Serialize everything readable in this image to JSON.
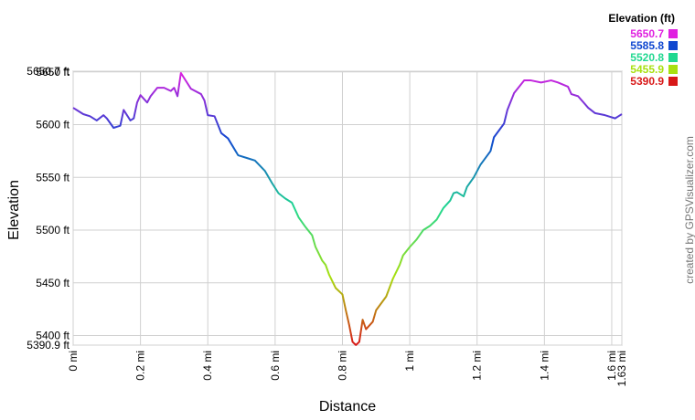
{
  "chart_data": {
    "type": "line",
    "xlabel": "Distance",
    "ylabel": "Elevation",
    "credit": "created by GPSVisualizer.com",
    "legend_title": "Elevation (ft)",
    "color_scale": [
      {
        "value": 5650.7,
        "color": "#e020e0"
      },
      {
        "value": 5585.8,
        "color": "#1048d0"
      },
      {
        "value": 5520.8,
        "color": "#20d890"
      },
      {
        "value": 5455.9,
        "color": "#a8e010"
      },
      {
        "value": 5390.9,
        "color": "#d81818"
      }
    ],
    "xlim": [
      0,
      1.63
    ],
    "xticks": [
      {
        "value": 0,
        "label": "0 mi"
      },
      {
        "value": 0.2,
        "label": "0.2 mi"
      },
      {
        "value": 0.4,
        "label": "0.4 mi"
      },
      {
        "value": 0.6,
        "label": "0.6 mi"
      },
      {
        "value": 0.8,
        "label": "0.8 mi"
      },
      {
        "value": 1,
        "label": "1 mi"
      },
      {
        "value": 1.2,
        "label": "1.2 mi"
      },
      {
        "value": 1.4,
        "label": "1.4 mi"
      },
      {
        "value": 1.6,
        "label": "1.6 mi"
      },
      {
        "value": 1.63,
        "label": "1.63 mi"
      }
    ],
    "ylim": [
      5390.9,
      5650.7
    ],
    "yticks": [
      {
        "value": 5390.9,
        "label": "5390.9 ft"
      },
      {
        "value": 5400,
        "label": "5400 ft"
      },
      {
        "value": 5450,
        "label": "5450 ft"
      },
      {
        "value": 5500,
        "label": "5500 ft"
      },
      {
        "value": 5550,
        "label": "5550 ft"
      },
      {
        "value": 5600,
        "label": "5600 ft"
      },
      {
        "value": 5650,
        "label": "5650 ft"
      },
      {
        "value": 5650.7,
        "label": "5650.7 ft"
      }
    ],
    "grid": true,
    "x": [
      0,
      0.01,
      0.03,
      0.05,
      0.07,
      0.09,
      0.1,
      0.12,
      0.14,
      0.15,
      0.16,
      0.17,
      0.18,
      0.19,
      0.2,
      0.22,
      0.23,
      0.25,
      0.27,
      0.29,
      0.3,
      0.31,
      0.32,
      0.34,
      0.35,
      0.38,
      0.39,
      0.4,
      0.42,
      0.44,
      0.46,
      0.49,
      0.52,
      0.54,
      0.57,
      0.59,
      0.61,
      0.63,
      0.65,
      0.67,
      0.69,
      0.71,
      0.72,
      0.74,
      0.75,
      0.76,
      0.78,
      0.8,
      0.81,
      0.82,
      0.83,
      0.84,
      0.85,
      0.86,
      0.87,
      0.89,
      0.9,
      0.93,
      0.95,
      0.97,
      0.98,
      1,
      1.02,
      1.04,
      1.06,
      1.08,
      1.1,
      1.12,
      1.13,
      1.14,
      1.16,
      1.17,
      1.19,
      1.21,
      1.24,
      1.25,
      1.28,
      1.29,
      1.31,
      1.34,
      1.36,
      1.39,
      1.42,
      1.44,
      1.47,
      1.48,
      1.5,
      1.53,
      1.55,
      1.58,
      1.61,
      1.62,
      1.63
    ],
    "values": [
      5616,
      5614,
      5610,
      5608,
      5604,
      5609,
      5606,
      5597,
      5599,
      5614,
      5609,
      5604,
      5606,
      5621,
      5628,
      5621,
      5627,
      5635,
      5635,
      5632,
      5635,
      5627,
      5649,
      5639,
      5634,
      5629,
      5623,
      5609,
      5608,
      5592,
      5587,
      5571,
      5568,
      5566,
      5556,
      5545,
      5535,
      5530,
      5526,
      5512,
      5503,
      5495,
      5484,
      5471,
      5467,
      5458,
      5445,
      5439,
      5424,
      5410,
      5394,
      5391,
      5394,
      5415,
      5406,
      5413,
      5424,
      5437,
      5454,
      5467,
      5476,
      5484,
      5491,
      5500,
      5504,
      5510,
      5521,
      5528,
      5535,
      5536,
      5532,
      5541,
      5550,
      5562,
      5575,
      5588,
      5601,
      5614,
      5630,
      5642,
      5642,
      5640,
      5642,
      5640,
      5636,
      5629,
      5627,
      5616,
      5611,
      5609,
      5606,
      5608,
      5610
    ]
  }
}
